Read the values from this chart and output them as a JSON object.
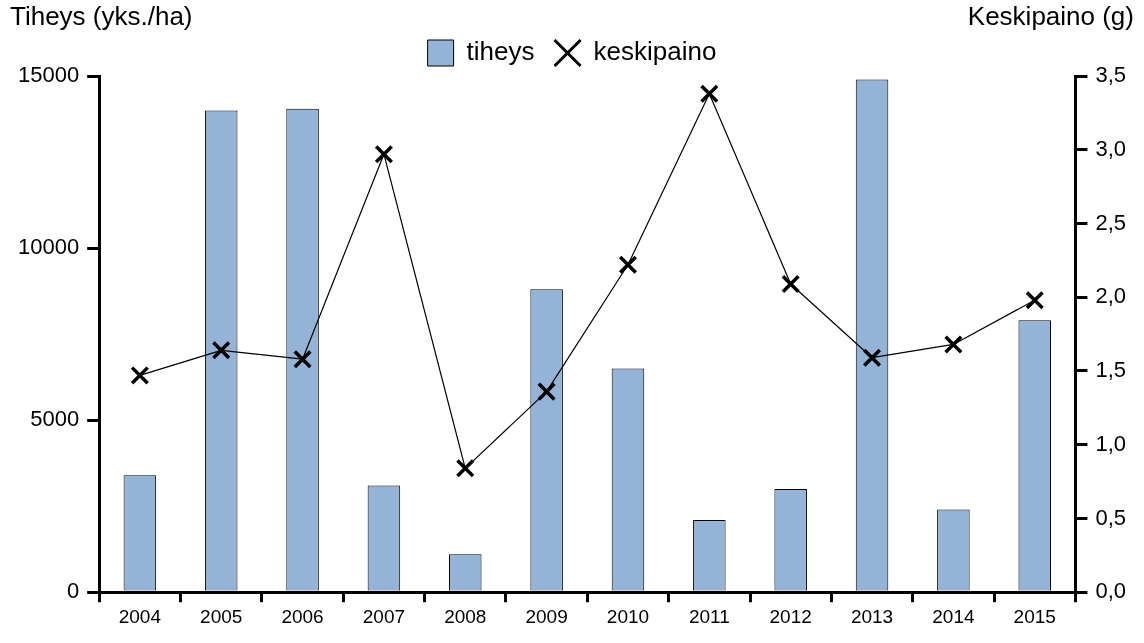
{
  "chart_data": {
    "type": "bar",
    "categories": [
      "2004",
      "2005",
      "2006",
      "2007",
      "2008",
      "2009",
      "2010",
      "2011",
      "2012",
      "2013",
      "2014",
      "2015"
    ],
    "ylabel": "Tiheys (yks./ha)",
    "y2label": "Keskipaino (g)",
    "ylim": [
      0,
      15000
    ],
    "yticks": [
      0,
      5000,
      10000,
      15000
    ],
    "y2lim": [
      0,
      3.5
    ],
    "y2ticks": [
      {
        "value": 0,
        "label": "0,0"
      },
      {
        "value": 0.5,
        "label": "0,5"
      },
      {
        "value": 1,
        "label": "1,0"
      },
      {
        "value": 1.5,
        "label": "1,5"
      },
      {
        "value": 2,
        "label": "2,0"
      },
      {
        "value": 2.5,
        "label": "2,5"
      },
      {
        "value": 3,
        "label": "3,0"
      },
      {
        "value": 3.5,
        "label": "3,5"
      }
    ],
    "series": [
      {
        "name": "tiheys",
        "color": "#95b3d7",
        "values": [
          3400,
          14000,
          14050,
          3100,
          1100,
          8800,
          6500,
          2100,
          3000,
          14900,
          2400,
          7900
        ]
      },
      {
        "name": "keskipaino",
        "type": "line",
        "axis": "y2",
        "color": "#000000",
        "marker": "cross",
        "line_style": "solid",
        "values": [
          1.47,
          1.64,
          1.58,
          2.97,
          0.84,
          1.36,
          2.22,
          3.38,
          2.09,
          1.59,
          1.68,
          1.98
        ]
      }
    ],
    "grid": false,
    "legend": "top"
  }
}
